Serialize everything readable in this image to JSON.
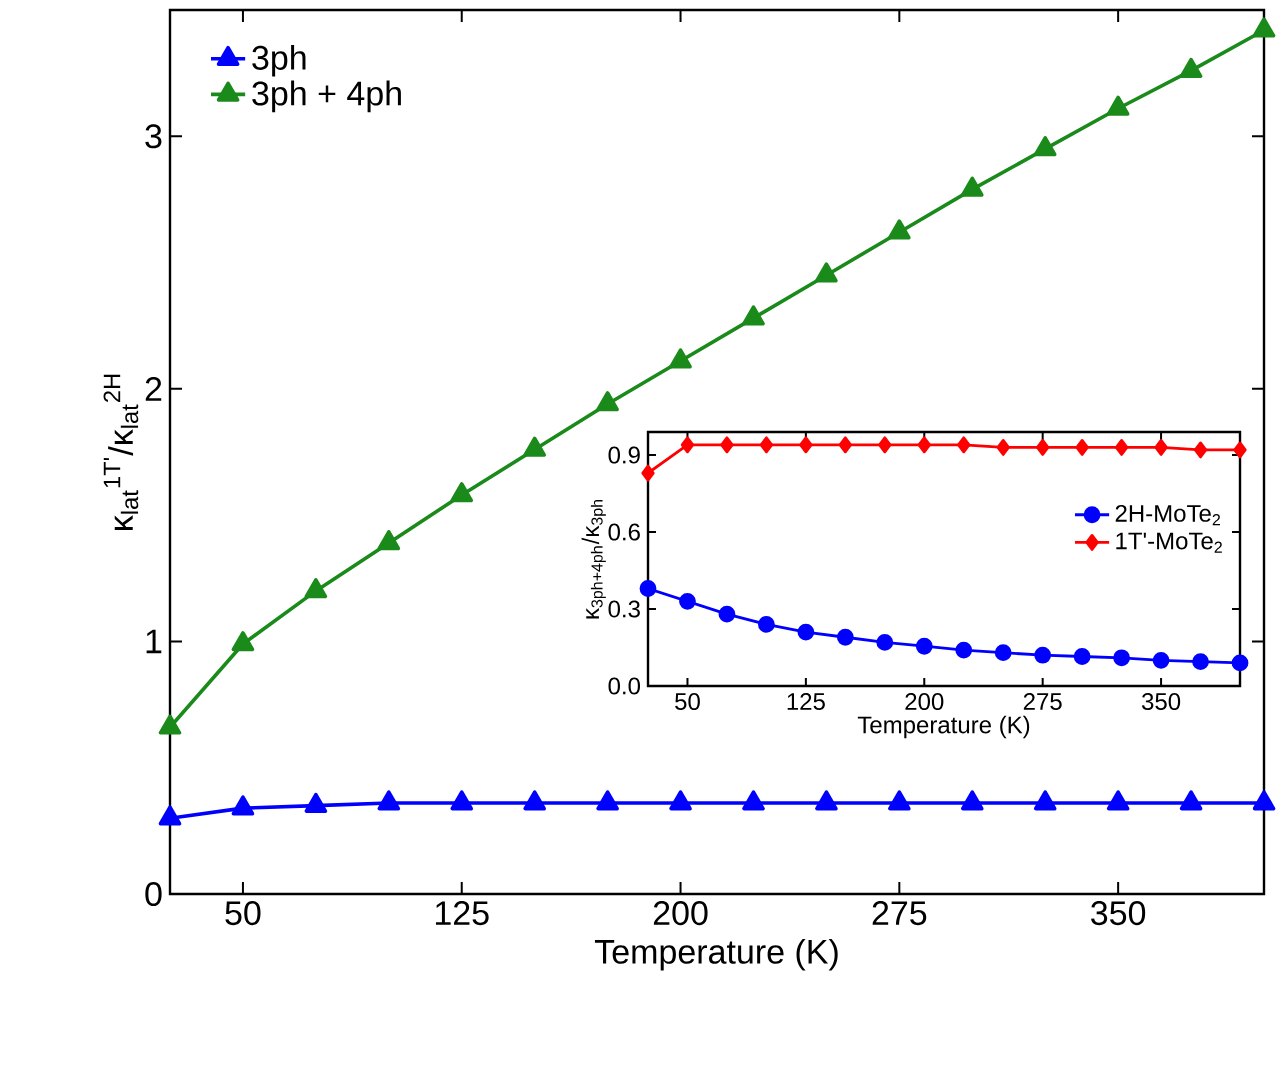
{
  "chart_data": [
    {
      "type": "line",
      "xlabel": "Temperature (K)",
      "ylabel": "κ$_{lat}$$^{1T'}$/κ$_{lat}$$^{2H}$",
      "x": [
        25,
        50,
        75,
        100,
        125,
        150,
        175,
        200,
        225,
        250,
        275,
        300,
        325,
        350,
        375,
        400
      ],
      "xlim": [
        25,
        400
      ],
      "ylim": [
        0,
        3.5
      ],
      "xticks": [
        50,
        125,
        200,
        275,
        350
      ],
      "yticks": [
        0,
        1,
        2,
        3
      ],
      "legend": "top left",
      "line_style": "solid",
      "series": [
        {
          "name": "3ph",
          "color": "#0000ff",
          "marker": "triangle",
          "values": [
            0.3,
            0.34,
            0.35,
            0.36,
            0.36,
            0.36,
            0.36,
            0.36,
            0.36,
            0.36,
            0.36,
            0.36,
            0.36,
            0.36,
            0.36,
            0.36
          ]
        },
        {
          "name": "3ph + 4ph",
          "color": "#1a8a1a",
          "marker": "triangle",
          "values": [
            0.66,
            0.99,
            1.2,
            1.39,
            1.58,
            1.76,
            1.94,
            2.11,
            2.28,
            2.45,
            2.62,
            2.79,
            2.95,
            3.11,
            3.26,
            3.42
          ]
        }
      ]
    },
    {
      "type": "line",
      "xlabel": "Temperature (K)",
      "ylabel": "κ$_{3ph+4ph}$/κ$_{3ph}$",
      "x": [
        25,
        50,
        75,
        100,
        125,
        150,
        175,
        200,
        225,
        250,
        275,
        300,
        325,
        350,
        375,
        400
      ],
      "xlim": [
        25,
        400
      ],
      "ylim": [
        0,
        0.99
      ],
      "xticks": [
        50,
        125,
        200,
        275,
        350
      ],
      "yticks": [
        {
          "value": 0,
          "label": "0.0"
        },
        0.3,
        0.6,
        0.9
      ],
      "legend": "right",
      "line_style": "solid",
      "series": [
        {
          "name": "2H-MoTe$_{2}$",
          "color": "#0000ff",
          "marker": "circle",
          "values": [
            0.38,
            0.33,
            0.28,
            0.24,
            0.21,
            0.19,
            0.17,
            0.155,
            0.14,
            0.13,
            0.12,
            0.115,
            0.11,
            0.1,
            0.095,
            0.09
          ]
        },
        {
          "name": "1T'-MoTe$_{2}$",
          "color": "#ff0000",
          "marker": "diamond",
          "values": [
            0.83,
            0.94,
            0.94,
            0.94,
            0.94,
            0.94,
            0.94,
            0.94,
            0.94,
            0.93,
            0.93,
            0.93,
            0.93,
            0.93,
            0.92,
            0.92
          ]
        }
      ]
    }
  ]
}
